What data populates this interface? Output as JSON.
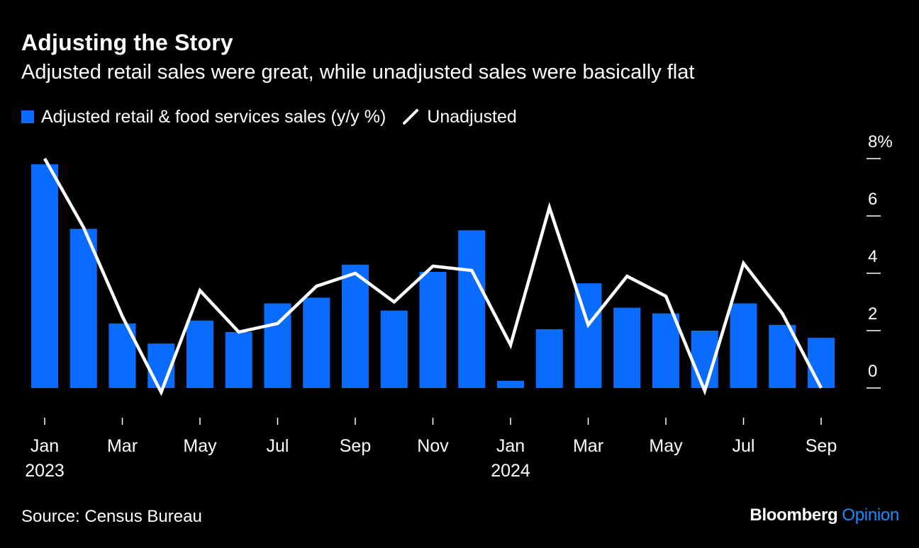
{
  "header": {
    "title": "Adjusting the Story",
    "subtitle": "Adjusted retail sales were great, while unadjusted sales were basically flat"
  },
  "legend": {
    "bars_label": "Adjusted retail & food services sales (y/y %)",
    "line_label": "Unadjusted"
  },
  "footer": {
    "source": "Source: Census Bureau",
    "brand_main": "Bloomberg",
    "brand_sub": "Opinion"
  },
  "colors": {
    "background": "#000000",
    "bars": "#0a6cff",
    "line": "#ffffff",
    "text": "#ffffff",
    "brand_accent": "#1a8cff"
  },
  "chart_data": {
    "type": "bar",
    "x": [
      "2023-01",
      "2023-02",
      "2023-03",
      "2023-04",
      "2023-05",
      "2023-06",
      "2023-07",
      "2023-08",
      "2023-09",
      "2023-10",
      "2023-11",
      "2023-12",
      "2024-01",
      "2024-02",
      "2024-03",
      "2024-04",
      "2024-05",
      "2024-06",
      "2024-07",
      "2024-08",
      "2024-09"
    ],
    "series": [
      {
        "name": "Adjusted retail & food services sales (y/y %)",
        "type": "bar",
        "values": [
          7.8,
          5.55,
          2.25,
          1.55,
          2.35,
          1.95,
          2.95,
          3.15,
          4.3,
          2.7,
          4.05,
          5.5,
          0.25,
          2.05,
          3.65,
          2.8,
          2.6,
          2.0,
          2.95,
          2.2,
          1.75
        ]
      },
      {
        "name": "Unadjusted",
        "type": "line",
        "values": [
          8.0,
          5.6,
          2.5,
          -0.15,
          3.4,
          1.95,
          2.25,
          3.55,
          4.0,
          3.0,
          4.25,
          4.1,
          1.5,
          6.3,
          2.2,
          3.9,
          3.2,
          -0.1,
          4.35,
          2.6,
          0.0
        ]
      }
    ],
    "x_tick_labels": [
      {
        "index": 0,
        "label": "Jan",
        "sublabel": "2023"
      },
      {
        "index": 2,
        "label": "Mar",
        "sublabel": ""
      },
      {
        "index": 4,
        "label": "May",
        "sublabel": ""
      },
      {
        "index": 6,
        "label": "Jul",
        "sublabel": ""
      },
      {
        "index": 8,
        "label": "Sep",
        "sublabel": ""
      },
      {
        "index": 10,
        "label": "Nov",
        "sublabel": ""
      },
      {
        "index": 12,
        "label": "Jan",
        "sublabel": "2024"
      },
      {
        "index": 14,
        "label": "Mar",
        "sublabel": ""
      },
      {
        "index": 16,
        "label": "May",
        "sublabel": ""
      },
      {
        "index": 18,
        "label": "Jul",
        "sublabel": ""
      },
      {
        "index": 20,
        "label": "Sep",
        "sublabel": ""
      }
    ],
    "y_ticks": [
      {
        "value": 0,
        "label": "0"
      },
      {
        "value": 2,
        "label": "2"
      },
      {
        "value": 4,
        "label": "4"
      },
      {
        "value": 6,
        "label": "6"
      },
      {
        "value": 8,
        "label": "8%"
      }
    ],
    "ylim": [
      -0.5,
      8.6
    ],
    "y_axis_position": "right",
    "grid": false,
    "legend_position": "top-left",
    "title": "Adjusting the Story",
    "xlabel": "",
    "ylabel": ""
  }
}
